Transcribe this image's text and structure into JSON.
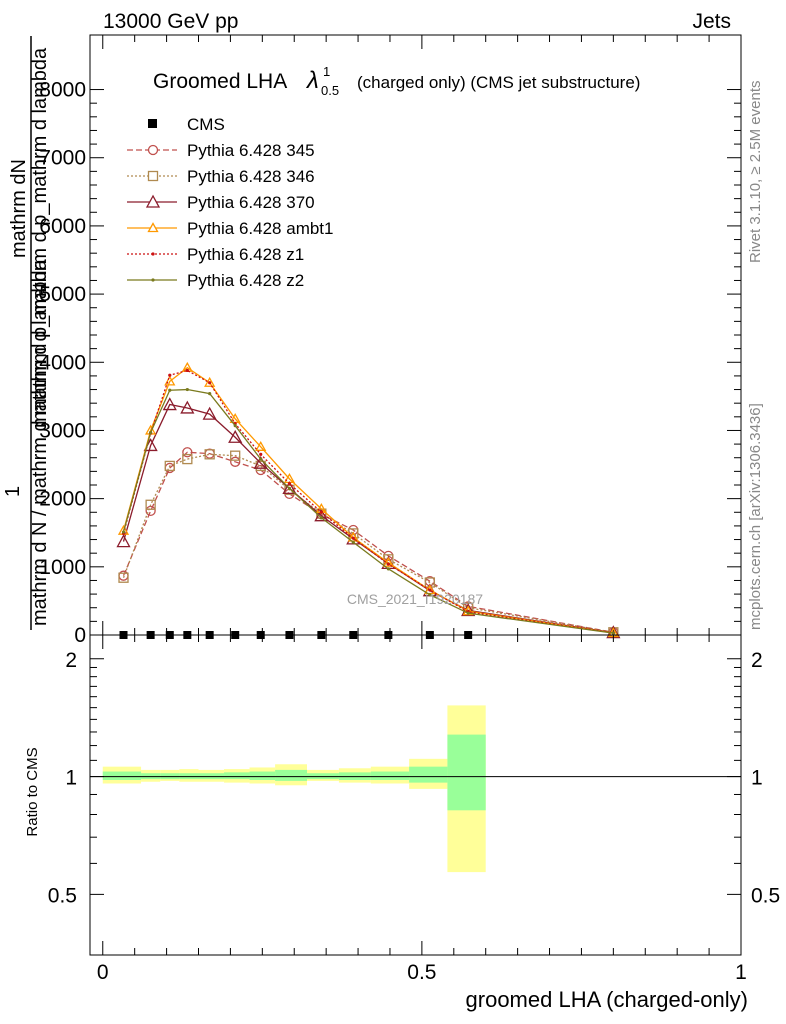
{
  "header": {
    "energy_label": "13000 GeV pp",
    "process_label": "Jets"
  },
  "side_labels": {
    "rivet": "Rivet 3.1.10, ≥ 2.5M events",
    "mcplots": "mcplots.cern.ch [arXiv:1306.3436]"
  },
  "watermark": "CMS_2021_I1920187",
  "chart_data": [
    {
      "type": "line",
      "title": "Groomed LHA",
      "title_symbol": "λ",
      "title_sup": "1",
      "title_sub": "0.5",
      "subtitle": "(charged only) (CMS jet substructure)",
      "ylabel_numerator": "mathrm dN",
      "ylabel_numerator_2": "mathrm d p_mathrm d p_mathrm d lambda",
      "ylabel_prefix": "1",
      "ylabel_denominator": "mathrm d N / mathrm d mathrm d lambda",
      "xlim": [
        -0.02,
        1.0
      ],
      "ylim": [
        0,
        8800
      ],
      "yticks": [
        0,
        1000,
        2000,
        3000,
        4000,
        5000,
        6000,
        7000,
        8000
      ],
      "ytick_labels": [
        "0",
        "1000",
        "2000",
        "3000",
        "4000",
        "5000",
        "6000",
        "7000",
        "8000"
      ],
      "x": [
        0.0325,
        0.075,
        0.105,
        0.1325,
        0.1675,
        0.2075,
        0.2475,
        0.2925,
        0.3425,
        0.3925,
        0.4475,
        0.5125,
        0.5725,
        0.8
      ],
      "cms": {
        "name": "CMS",
        "x": [
          0.0325,
          0.075,
          0.105,
          0.1325,
          0.1675,
          0.2075,
          0.2475,
          0.2925,
          0.3425,
          0.3925,
          0.4475,
          0.5125,
          0.5725
        ],
        "values": [
          0,
          0,
          0,
          0,
          0,
          0,
          0,
          0,
          0,
          0,
          0,
          0,
          0
        ]
      },
      "series": [
        {
          "name": "Pythia 6.428 345",
          "color": "#c0504d",
          "dash": "6,3",
          "marker": "circle",
          "values": [
            870,
            1820,
            2450,
            2680,
            2660,
            2540,
            2420,
            2070,
            1770,
            1540,
            1160,
            790,
            420,
            40
          ]
        },
        {
          "name": "Pythia 6.428 346",
          "color": "#b08a50",
          "dash": "2,2",
          "marker": "square",
          "values": [
            840,
            1910,
            2480,
            2580,
            2650,
            2630,
            2480,
            2130,
            1780,
            1490,
            1110,
            770,
            400,
            40
          ]
        },
        {
          "name": "Pythia 6.428 370",
          "color": "#8b1c2c",
          "dash": "",
          "marker": "triangle",
          "values": [
            1370,
            2780,
            3380,
            3330,
            3240,
            2900,
            2520,
            2150,
            1750,
            1410,
            1050,
            650,
            360,
            35
          ]
        },
        {
          "name": "Pythia 6.428 ambt1",
          "color": "#ff9900",
          "dash": "",
          "marker": "triangle-filled-small",
          "values": [
            1530,
            3000,
            3720,
            3920,
            3700,
            3170,
            2760,
            2290,
            1850,
            1430,
            1060,
            660,
            350,
            30
          ]
        },
        {
          "name": "Pythia 6.428 z1",
          "color": "#cc1111",
          "dash": "2,2",
          "marker": "dot",
          "values": [
            1490,
            2960,
            3810,
            3880,
            3700,
            3100,
            2650,
            2220,
            1800,
            1420,
            1040,
            660,
            340,
            30
          ]
        },
        {
          "name": "Pythia 6.428 z2",
          "color": "#7a7a1e",
          "dash": "",
          "marker": "dot",
          "values": [
            1510,
            2970,
            3590,
            3600,
            3540,
            3070,
            2580,
            2150,
            1720,
            1360,
            970,
            590,
            320,
            28
          ]
        }
      ]
    },
    {
      "type": "area",
      "ylabel": "Ratio to CMS",
      "xlabel": "groomed LHA (charged-only)",
      "xlim": [
        -0.02,
        1.0
      ],
      "ylim": [
        0.35,
        2.3
      ],
      "yticks": [
        0.5,
        1,
        2
      ],
      "ytick_labels": [
        "0.5",
        "1",
        "2"
      ],
      "xticks": [
        0,
        0.5,
        1
      ],
      "xtick_labels": [
        "0",
        "0.5",
        "1"
      ],
      "bin_edges": [
        0.0,
        0.06,
        0.09,
        0.12,
        0.15,
        0.19,
        0.23,
        0.27,
        0.32,
        0.37,
        0.42,
        0.48,
        0.54,
        0.6,
        1.0
      ],
      "syst_band": [
        [
          0.96,
          1.06
        ],
        [
          0.97,
          1.04
        ],
        [
          0.975,
          1.04
        ],
        [
          0.97,
          1.045
        ],
        [
          0.97,
          1.04
        ],
        [
          0.965,
          1.045
        ],
        [
          0.96,
          1.055
        ],
        [
          0.95,
          1.075
        ],
        [
          0.975,
          1.04
        ],
        [
          0.965,
          1.05
        ],
        [
          0.96,
          1.06
        ],
        [
          0.93,
          1.11
        ],
        [
          0.57,
          1.52
        ]
      ],
      "stat_band": [
        [
          0.98,
          1.03
        ],
        [
          0.985,
          1.02
        ],
        [
          0.985,
          1.02
        ],
        [
          0.985,
          1.02
        ],
        [
          0.985,
          1.02
        ],
        [
          0.985,
          1.025
        ],
        [
          0.98,
          1.03
        ],
        [
          0.975,
          1.04
        ],
        [
          0.985,
          1.02
        ],
        [
          0.98,
          1.025
        ],
        [
          0.98,
          1.03
        ],
        [
          0.965,
          1.06
        ],
        [
          0.82,
          1.28
        ]
      ],
      "syst_color": "#ffff99",
      "stat_color": "#99ff99"
    }
  ]
}
